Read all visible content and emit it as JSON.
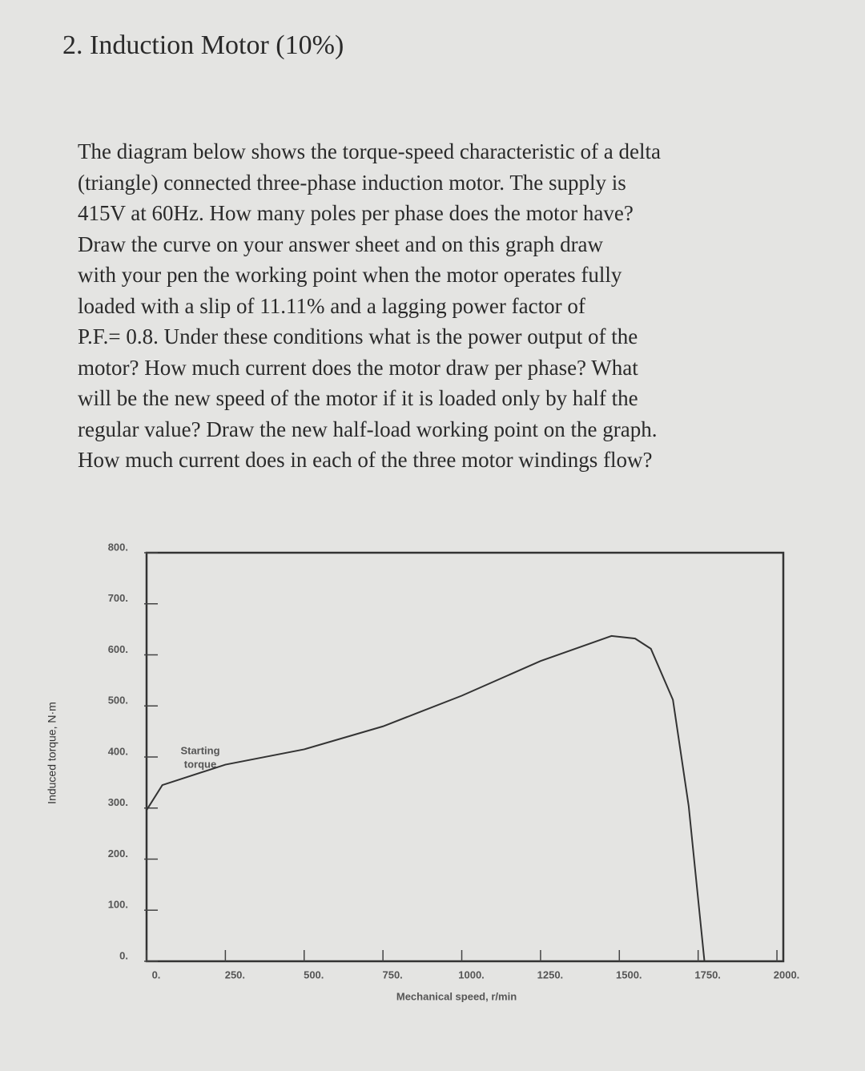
{
  "header": {
    "title": "2. Induction Motor (10%)"
  },
  "paragraph": {
    "lines": [
      "The diagram below shows the torque-speed characteristic of a delta",
      "(triangle) connected three-phase induction motor. The supply is",
      "415V at 60Hz. How many poles per phase does the motor have?",
      "Draw the curve on your answer sheet and on this graph draw",
      "with your pen the working point when the motor operates fully",
      "loaded with a slip of 11.11% and a lagging power factor of",
      "P.F.= 0.8. Under these conditions what is the power output of the",
      "motor? How much current does the motor draw per phase? What",
      "will be the new speed of the motor if it is loaded only by half the",
      "regular value? Draw the new half-load working point on the graph.",
      "How much current does in each of the three motor windings flow?"
    ]
  },
  "chart_data": {
    "type": "line",
    "x_label": "Mechanical speed, r/min",
    "y_label": "Induced torque, N·m",
    "annotation": [
      "Starting",
      "torque"
    ],
    "x": [
      0,
      50,
      250,
      500,
      750,
      1000,
      1250,
      1475,
      1550,
      1600,
      1670,
      1720,
      1770
    ],
    "series": [
      {
        "color": "#333333",
        "values": [
          296,
          345,
          385,
          415,
          460,
          520,
          588,
          637,
          632,
          612,
          512,
          304,
          0
        ]
      }
    ],
    "xlim": [
      0,
      2000
    ],
    "ylim": [
      0,
      800
    ],
    "xticks": [
      {
        "value": 0,
        "label": "0."
      },
      {
        "value": 250,
        "label": "250."
      },
      {
        "value": 500,
        "label": "500."
      },
      {
        "value": 750,
        "label": "750."
      },
      {
        "value": 1000,
        "label": "1000."
      },
      {
        "value": 1250,
        "label": "1250."
      },
      {
        "value": 1500,
        "label": "1500."
      },
      {
        "value": 1750,
        "label": "1750."
      },
      {
        "value": 2000,
        "label": "2000."
      }
    ],
    "yticks": [
      {
        "value": 0,
        "label": "0."
      },
      {
        "value": 100,
        "label": "100."
      },
      {
        "value": 200,
        "label": "200."
      },
      {
        "value": 300,
        "label": "300."
      },
      {
        "value": 400,
        "label": "400."
      },
      {
        "value": 500,
        "label": "500."
      },
      {
        "value": 600,
        "label": "600."
      },
      {
        "value": 700,
        "label": "700."
      },
      {
        "value": 800,
        "label": "800."
      }
    ]
  }
}
